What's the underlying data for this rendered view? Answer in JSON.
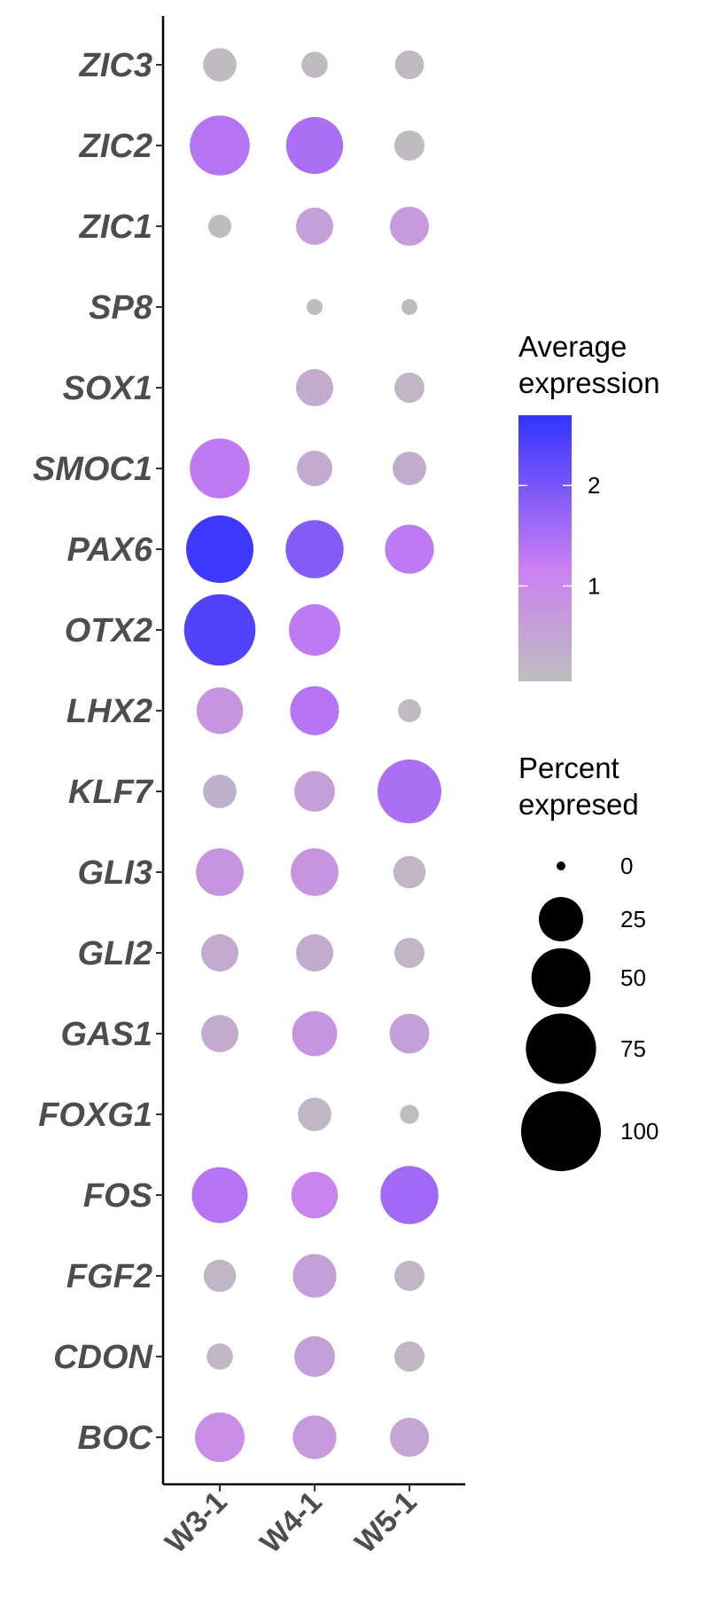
{
  "chart_data": {
    "type": "dot",
    "genes": [
      "ZIC3",
      "ZIC2",
      "ZIC1",
      "SP8",
      "SOX1",
      "SMOC1",
      "PAX6",
      "OTX2",
      "LHX2",
      "KLF7",
      "GLI3",
      "GLI2",
      "GAS1",
      "FOXG1",
      "FOS",
      "FGF2",
      "CDON",
      "BOC"
    ],
    "samples": [
      "W3-1",
      "W4-1",
      "W5-1"
    ],
    "color_legend": {
      "title_lines": [
        "Average",
        "expression"
      ],
      "ticks": [
        1,
        2
      ],
      "range": [
        0.05,
        2.7
      ],
      "colors": {
        "low": "#bebebe",
        "mid": "#cc80f2",
        "high": "#3333ff"
      }
    },
    "size_legend": {
      "title_lines": [
        "Percent",
        "expresed"
      ],
      "ticks": [
        0,
        25,
        50,
        75,
        100
      ]
    },
    "points": [
      {
        "gene": "ZIC3",
        "sample": "W3-1",
        "pct": 12,
        "avg": 0.1
      },
      {
        "gene": "ZIC3",
        "sample": "W4-1",
        "pct": 6,
        "avg": 0.1
      },
      {
        "gene": "ZIC3",
        "sample": "W5-1",
        "pct": 8,
        "avg": 0.1
      },
      {
        "gene": "ZIC2",
        "sample": "W3-1",
        "pct": 52,
        "avg": 1.4
      },
      {
        "gene": "ZIC2",
        "sample": "W4-1",
        "pct": 46,
        "avg": 1.5
      },
      {
        "gene": "ZIC2",
        "sample": "W5-1",
        "pct": 9,
        "avg": 0.1
      },
      {
        "gene": "ZIC1",
        "sample": "W3-1",
        "pct": 4,
        "avg": 0.1
      },
      {
        "gene": "ZIC1",
        "sample": "W4-1",
        "pct": 16,
        "avg": 0.6
      },
      {
        "gene": "ZIC1",
        "sample": "W5-1",
        "pct": 18,
        "avg": 0.7
      },
      {
        "gene": "SP8",
        "sample": "W4-1",
        "pct": 1,
        "avg": 0.1
      },
      {
        "gene": "SP8",
        "sample": "W5-1",
        "pct": 1,
        "avg": 0.1
      },
      {
        "gene": "SOX1",
        "sample": "W4-1",
        "pct": 16,
        "avg": 0.4
      },
      {
        "gene": "SOX1",
        "sample": "W5-1",
        "pct": 9,
        "avg": 0.2
      },
      {
        "gene": "SMOC1",
        "sample": "W3-1",
        "pct": 52,
        "avg": 1.3
      },
      {
        "gene": "SMOC1",
        "sample": "W4-1",
        "pct": 14,
        "avg": 0.4
      },
      {
        "gene": "SMOC1",
        "sample": "W5-1",
        "pct": 12,
        "avg": 0.4
      },
      {
        "gene": "PAX6",
        "sample": "W3-1",
        "pct": 68,
        "avg": 2.6
      },
      {
        "gene": "PAX6",
        "sample": "W4-1",
        "pct": 48,
        "avg": 1.9
      },
      {
        "gene": "PAX6",
        "sample": "W5-1",
        "pct": 32,
        "avg": 1.3
      },
      {
        "gene": "OTX2",
        "sample": "W3-1",
        "pct": 78,
        "avg": 2.4
      },
      {
        "gene": "OTX2",
        "sample": "W4-1",
        "pct": 36,
        "avg": 1.3
      },
      {
        "gene": "LHX2",
        "sample": "W3-1",
        "pct": 28,
        "avg": 0.8
      },
      {
        "gene": "LHX2",
        "sample": "W4-1",
        "pct": 32,
        "avg": 1.4
      },
      {
        "gene": "LHX2",
        "sample": "W5-1",
        "pct": 4,
        "avg": 0.1
      },
      {
        "gene": "KLF7",
        "sample": "W3-1",
        "pct": 12,
        "avg": 0.3
      },
      {
        "gene": "KLF7",
        "sample": "W4-1",
        "pct": 20,
        "avg": 0.6
      },
      {
        "gene": "KLF7",
        "sample": "W5-1",
        "pct": 60,
        "avg": 1.5
      },
      {
        "gene": "GLI3",
        "sample": "W3-1",
        "pct": 30,
        "avg": 0.8
      },
      {
        "gene": "GLI3",
        "sample": "W4-1",
        "pct": 30,
        "avg": 0.8
      },
      {
        "gene": "GLI3",
        "sample": "W5-1",
        "pct": 11,
        "avg": 0.2
      },
      {
        "gene": "GLI2",
        "sample": "W3-1",
        "pct": 16,
        "avg": 0.4
      },
      {
        "gene": "GLI2",
        "sample": "W4-1",
        "pct": 16,
        "avg": 0.4
      },
      {
        "gene": "GLI2",
        "sample": "W5-1",
        "pct": 9,
        "avg": 0.2
      },
      {
        "gene": "GAS1",
        "sample": "W3-1",
        "pct": 16,
        "avg": 0.4
      },
      {
        "gene": "GAS1",
        "sample": "W4-1",
        "pct": 26,
        "avg": 0.8
      },
      {
        "gene": "GAS1",
        "sample": "W5-1",
        "pct": 19,
        "avg": 0.6
      },
      {
        "gene": "FOXG1",
        "sample": "W4-1",
        "pct": 12,
        "avg": 0.2
      },
      {
        "gene": "FOXG1",
        "sample": "W5-1",
        "pct": 2,
        "avg": 0.1
      },
      {
        "gene": "FOS",
        "sample": "W3-1",
        "pct": 44,
        "avg": 1.4
      },
      {
        "gene": "FOS",
        "sample": "W4-1",
        "pct": 28,
        "avg": 1.1
      },
      {
        "gene": "FOS",
        "sample": "W5-1",
        "pct": 48,
        "avg": 1.6
      },
      {
        "gene": "FGF2",
        "sample": "W3-1",
        "pct": 11,
        "avg": 0.2
      },
      {
        "gene": "FGF2",
        "sample": "W4-1",
        "pct": 24,
        "avg": 0.6
      },
      {
        "gene": "FGF2",
        "sample": "W5-1",
        "pct": 9,
        "avg": 0.2
      },
      {
        "gene": "CDON",
        "sample": "W3-1",
        "pct": 6,
        "avg": 0.2
      },
      {
        "gene": "CDON",
        "sample": "W4-1",
        "pct": 20,
        "avg": 0.6
      },
      {
        "gene": "CDON",
        "sample": "W5-1",
        "pct": 9,
        "avg": 0.2
      },
      {
        "gene": "BOC",
        "sample": "W3-1",
        "pct": 33,
        "avg": 0.9
      },
      {
        "gene": "BOC",
        "sample": "W4-1",
        "pct": 24,
        "avg": 0.7
      },
      {
        "gene": "BOC",
        "sample": "W5-1",
        "pct": 18,
        "avg": 0.5
      }
    ]
  }
}
